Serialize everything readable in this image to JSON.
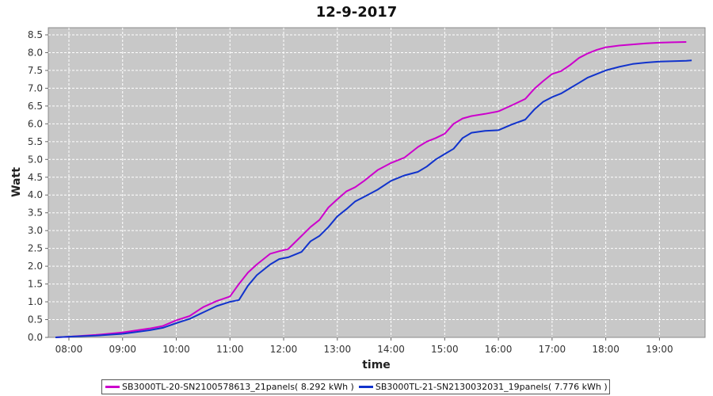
{
  "chart_data": {
    "type": "line",
    "title": "12-9-2017",
    "xlabel": "time",
    "ylabel": "Watt",
    "xlim": [
      "07:37",
      "19:51"
    ],
    "ylim": [
      0,
      8.7
    ],
    "x_ticks": [
      "08:00",
      "09:00",
      "10:00",
      "11:00",
      "12:00",
      "13:00",
      "14:00",
      "15:00",
      "16:00",
      "17:00",
      "18:00",
      "19:00"
    ],
    "y_ticks": [
      "0.0",
      "0.5",
      "1.0",
      "1.5",
      "2.0",
      "2.5",
      "3.0",
      "3.5",
      "4.0",
      "4.5",
      "5.0",
      "5.5",
      "6.0",
      "6.5",
      "7.0",
      "7.5",
      "8.0",
      "8.5"
    ],
    "grid": true,
    "legend_position": "bottom",
    "series": [
      {
        "name": "SB3000TL-20-SN2100578613_21panels( 8.292 kWh )",
        "color": "#cc00cc",
        "x": [
          "07:45",
          "08:00",
          "08:30",
          "09:00",
          "09:30",
          "09:45",
          "10:00",
          "10:15",
          "10:30",
          "10:45",
          "11:00",
          "11:10",
          "11:20",
          "11:30",
          "11:45",
          "11:55",
          "12:05",
          "12:20",
          "12:30",
          "12:40",
          "12:50",
          "13:00",
          "13:10",
          "13:20",
          "13:30",
          "13:45",
          "14:00",
          "14:15",
          "14:30",
          "14:40",
          "14:50",
          "15:00",
          "15:10",
          "15:20",
          "15:30",
          "15:45",
          "16:00",
          "16:15",
          "16:30",
          "16:40",
          "16:50",
          "17:00",
          "17:10",
          "17:20",
          "17:30",
          "17:40",
          "17:50",
          "18:00",
          "18:15",
          "18:30",
          "18:45",
          "19:00",
          "19:15",
          "19:30"
        ],
        "y": [
          0.0,
          0.02,
          0.07,
          0.14,
          0.25,
          0.32,
          0.48,
          0.6,
          0.85,
          1.02,
          1.15,
          1.5,
          1.82,
          2.05,
          2.35,
          2.42,
          2.48,
          2.85,
          3.1,
          3.3,
          3.65,
          3.88,
          4.1,
          4.22,
          4.4,
          4.7,
          4.9,
          5.05,
          5.35,
          5.5,
          5.6,
          5.72,
          6.0,
          6.15,
          6.22,
          6.28,
          6.35,
          6.52,
          6.7,
          6.98,
          7.2,
          7.4,
          7.48,
          7.65,
          7.85,
          7.98,
          8.08,
          8.15,
          8.2,
          8.23,
          8.26,
          8.28,
          8.29,
          8.3
        ]
      },
      {
        "name": "SB3000TL-21-SN2130032031_19panels( 7.776 kWh )",
        "color": "#1133cc",
        "x": [
          "07:45",
          "08:00",
          "08:30",
          "09:00",
          "09:30",
          "09:45",
          "10:00",
          "10:15",
          "10:30",
          "10:45",
          "11:00",
          "11:10",
          "11:20",
          "11:30",
          "11:45",
          "11:55",
          "12:05",
          "12:20",
          "12:30",
          "12:40",
          "12:50",
          "13:00",
          "13:10",
          "13:20",
          "13:30",
          "13:45",
          "14:00",
          "14:15",
          "14:30",
          "14:40",
          "14:50",
          "15:00",
          "15:10",
          "15:20",
          "15:30",
          "15:45",
          "16:00",
          "16:15",
          "16:30",
          "16:40",
          "16:50",
          "17:00",
          "17:10",
          "17:20",
          "17:30",
          "17:40",
          "17:50",
          "18:00",
          "18:15",
          "18:30",
          "18:45",
          "19:00",
          "19:15",
          "19:30",
          "19:36"
        ],
        "y": [
          0.0,
          0.02,
          0.05,
          0.1,
          0.2,
          0.27,
          0.4,
          0.52,
          0.7,
          0.88,
          1.0,
          1.05,
          1.45,
          1.75,
          2.05,
          2.2,
          2.25,
          2.4,
          2.7,
          2.85,
          3.1,
          3.4,
          3.6,
          3.82,
          3.95,
          4.15,
          4.4,
          4.55,
          4.65,
          4.8,
          5.0,
          5.15,
          5.3,
          5.6,
          5.75,
          5.8,
          5.82,
          5.98,
          6.12,
          6.4,
          6.62,
          6.75,
          6.85,
          7.0,
          7.15,
          7.3,
          7.4,
          7.5,
          7.6,
          7.68,
          7.72,
          7.75,
          7.76,
          7.77,
          7.78
        ]
      }
    ]
  }
}
